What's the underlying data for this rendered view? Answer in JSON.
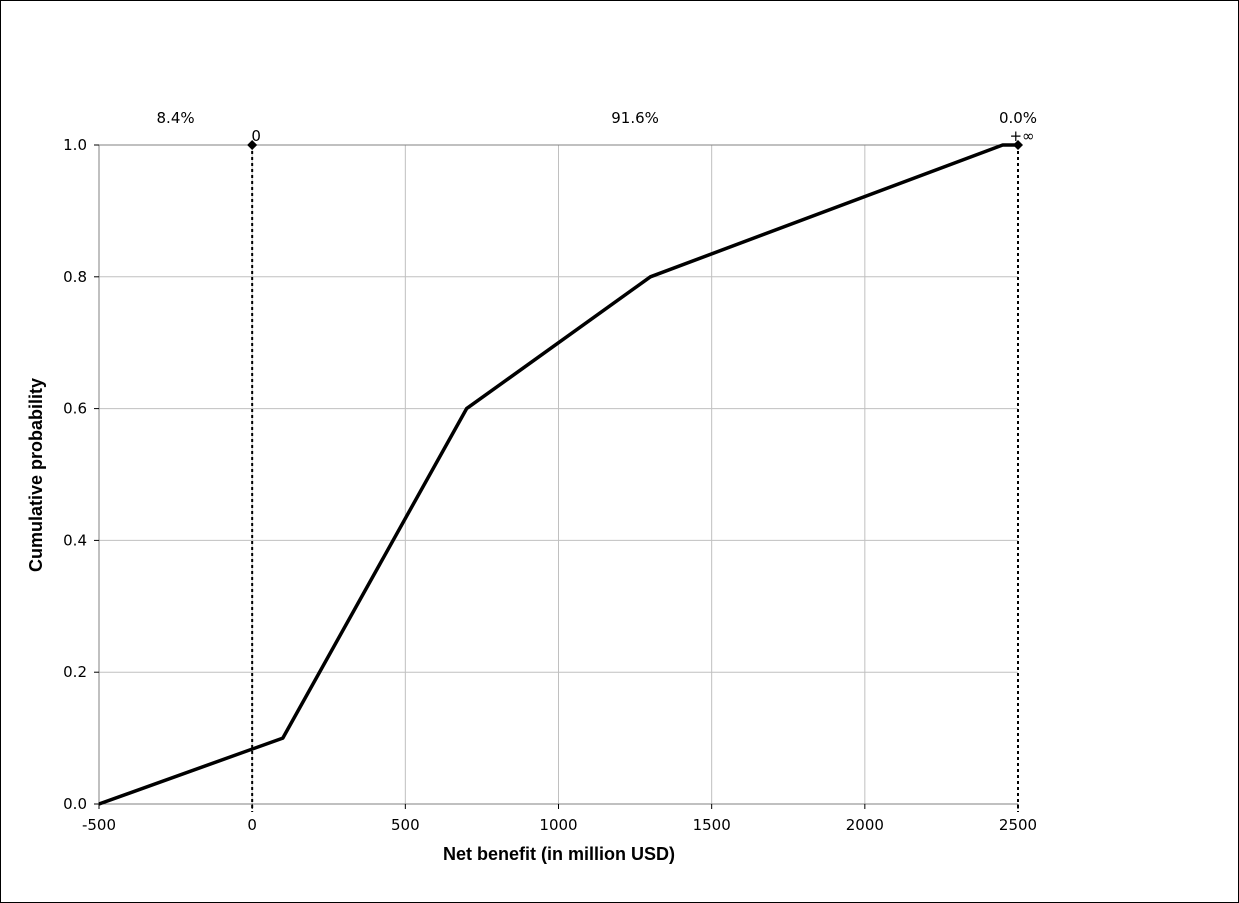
{
  "chart_data": {
    "type": "line",
    "title": "",
    "xlabel": "Net benefit (in million USD)",
    "ylabel": "Cumulative probability",
    "xlim": [
      -500,
      2500
    ],
    "ylim": [
      0,
      1
    ],
    "x_ticks": [
      -500,
      0,
      500,
      1000,
      1500,
      2000,
      2500
    ],
    "x_tick_labels": [
      "-500",
      "0",
      "500",
      "1000",
      "1500",
      "2000",
      "2500"
    ],
    "y_ticks": [
      0,
      0.2,
      0.4,
      0.6,
      0.8,
      1.0
    ],
    "y_tick_labels": [
      "0.0",
      "0.2",
      "0.4",
      "0.6",
      "0.8",
      "1.0"
    ],
    "grid": true,
    "series": [
      {
        "x": [
          -500,
          100,
          700,
          1300,
          2450,
          2500
        ],
        "y": [
          0,
          0.1,
          0.6,
          0.8,
          1.0,
          1.0
        ]
      }
    ],
    "markers": [
      {
        "x": 0,
        "label": "0"
      },
      {
        "x": 2500,
        "label": "+∞"
      }
    ],
    "region_percentages": [
      {
        "label": "8.4%",
        "x_from": -500,
        "x_to": 0
      },
      {
        "label": "91.6%",
        "x_from": 0,
        "x_to": 2500
      },
      {
        "label": "0.0%",
        "x_from": 2500,
        "x_to": 2500
      }
    ],
    "colors": {
      "line": "#000000",
      "grid": "#c0c0c0",
      "axis": "#808080"
    }
  }
}
